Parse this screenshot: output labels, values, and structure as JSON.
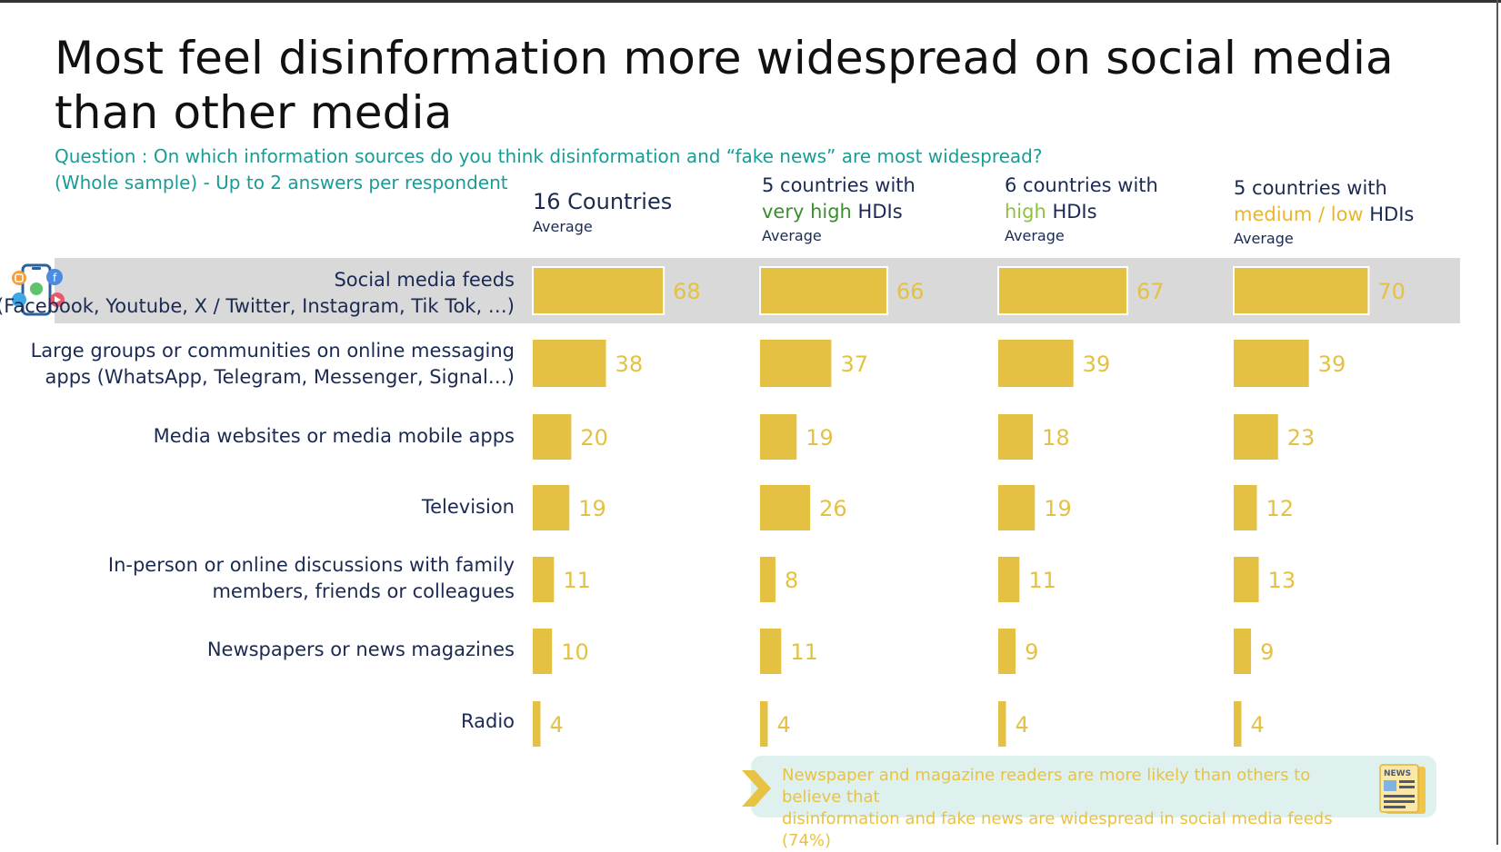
{
  "title": "Most feel disinformation more widespread on social media than other media",
  "question_line1": "Question : On which information sources do you think disinformation and “fake news” are most widespread?",
  "question_line2": "(Whole sample) - Up to 2 answers per respondent",
  "columns": [
    {
      "line1": "16 Countries",
      "line2_prefix": "",
      "line2_highlight": "",
      "line2_suffix": "",
      "avg": "Average"
    },
    {
      "line1": "5 countries with",
      "line2_prefix": "",
      "line2_highlight": "very high",
      "line2_suffix": " HDIs",
      "avg": "Average"
    },
    {
      "line1": "6 countries with",
      "line2_prefix": "",
      "line2_highlight": "high",
      "line2_suffix": " HDIs",
      "avg": "Average"
    },
    {
      "line1": "5 countries with",
      "line2_prefix": "",
      "line2_highlight": "medium / low",
      "line2_suffix": " HDIs",
      "avg": "Average"
    }
  ],
  "rows": [
    {
      "line1": "Social media feeds",
      "line2": "(Facebook, Youtube, X / Twitter, Instagram, Tik Tok, …)"
    },
    {
      "line1": "Large groups or communities on online messaging",
      "line2": "apps (WhatsApp, Telegram, Messenger, Signal…)"
    },
    {
      "line1": "Media websites or media mobile apps",
      "line2": ""
    },
    {
      "line1": "Television",
      "line2": ""
    },
    {
      "line1": "In-person or online discussions with family",
      "line2": "members, friends or colleagues"
    },
    {
      "line1": "Newspapers or news magazines",
      "line2": ""
    },
    {
      "line1": "Radio",
      "line2": ""
    }
  ],
  "chart_data": {
    "type": "bar",
    "orientation": "horizontal",
    "categories": [
      "Social media feeds (Facebook, Youtube, X / Twitter, Instagram, Tik Tok, …)",
      "Large groups or communities on online messaging apps (WhatsApp, Telegram, Messenger, Signal…)",
      "Media websites or media mobile apps",
      "Television",
      "In-person or online discussions with family members, friends or colleagues",
      "Newspapers or news magazines",
      "Radio"
    ],
    "series": [
      {
        "name": "16 Countries Average",
        "values": [
          68,
          38,
          20,
          19,
          11,
          10,
          4
        ]
      },
      {
        "name": "5 countries with very high HDIs Average",
        "values": [
          66,
          37,
          19,
          26,
          8,
          11,
          4
        ]
      },
      {
        "name": "6 countries with high HDIs Average",
        "values": [
          67,
          39,
          18,
          19,
          11,
          9,
          4
        ]
      },
      {
        "name": "5 countries with medium / low HDIs Average",
        "values": [
          70,
          39,
          23,
          12,
          13,
          9,
          4
        ]
      }
    ],
    "highlight_row": 0
  },
  "callout": {
    "text_line1": "Newspaper and magazine readers are more likely than others to believe that",
    "text_line2": "disinformation and fake news are widespread in social media feeds (74%)",
    "icon_label": "NEWS"
  },
  "colors": {
    "bar": "#e5c143",
    "value_label": "#e5c143",
    "highlight_band": "#d9d9d9",
    "question": "#1a9c96",
    "label": "#1b2a52"
  }
}
